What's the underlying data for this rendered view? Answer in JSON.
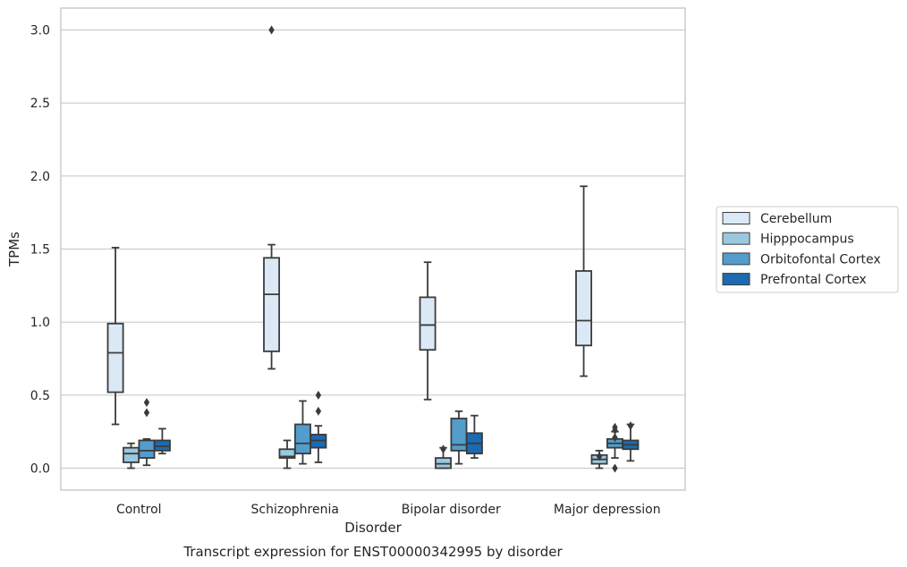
{
  "chart_data": {
    "type": "box",
    "caption": "Transcript expression for ENST00000342995 by disorder",
    "xlabel": "Disorder",
    "ylabel": "TPMs",
    "ylim": [
      -0.15,
      3.15
    ],
    "yticks": [
      0.0,
      0.5,
      1.0,
      1.5,
      2.0,
      2.5,
      3.0
    ],
    "ytick_labels": [
      "0.0",
      "0.5",
      "1.0",
      "1.5",
      "2.0",
      "2.5",
      "3.0"
    ],
    "grid": "horizontal",
    "legend_position": "right",
    "categories": [
      "Control",
      "Schizophrenia",
      "Bipolar disorder",
      "Major depression"
    ],
    "series": [
      {
        "name": "Cerebellum",
        "color": "#dbe9f6",
        "boxes": [
          {
            "whisker_low": 0.3,
            "q1": 0.52,
            "median": 0.79,
            "q3": 0.99,
            "whisker_high": 1.51,
            "outliers": []
          },
          {
            "whisker_low": 0.68,
            "q1": 0.8,
            "median": 1.19,
            "q3": 1.44,
            "whisker_high": 1.53,
            "outliers": [
              3.0
            ]
          },
          {
            "whisker_low": 0.47,
            "q1": 0.81,
            "median": 0.98,
            "q3": 1.17,
            "whisker_high": 1.41,
            "outliers": []
          },
          {
            "whisker_low": 0.63,
            "q1": 0.84,
            "median": 1.01,
            "q3": 1.35,
            "whisker_high": 1.93,
            "outliers": []
          }
        ]
      },
      {
        "name": "Hipppocampus",
        "color": "#9ac8e0",
        "boxes": [
          {
            "whisker_low": 0.0,
            "q1": 0.04,
            "median": 0.1,
            "q3": 0.14,
            "whisker_high": 0.17,
            "outliers": []
          },
          {
            "whisker_low": 0.0,
            "q1": 0.07,
            "median": 0.08,
            "q3": 0.13,
            "whisker_high": 0.19,
            "outliers": []
          },
          {
            "whisker_low": 0.0,
            "q1": 0.0,
            "median": 0.03,
            "q3": 0.07,
            "whisker_high": 0.14,
            "outliers": [
              0.13
            ]
          },
          {
            "whisker_low": 0.0,
            "q1": 0.03,
            "median": 0.06,
            "q3": 0.09,
            "whisker_high": 0.12,
            "outliers": [
              0.08
            ]
          }
        ]
      },
      {
        "name": "Orbitofontal Cortex",
        "color": "#529dcc",
        "boxes": [
          {
            "whisker_low": 0.02,
            "q1": 0.07,
            "median": 0.12,
            "q3": 0.19,
            "whisker_high": 0.2,
            "outliers": [
              0.38,
              0.45
            ]
          },
          {
            "whisker_low": 0.03,
            "q1": 0.1,
            "median": 0.17,
            "q3": 0.3,
            "whisker_high": 0.46,
            "outliers": []
          },
          {
            "whisker_low": 0.03,
            "q1": 0.12,
            "median": 0.16,
            "q3": 0.34,
            "whisker_high": 0.39,
            "outliers": []
          },
          {
            "whisker_low": 0.07,
            "q1": 0.14,
            "median": 0.17,
            "q3": 0.2,
            "whisker_high": 0.25,
            "outliers": [
              0.0,
              0.21,
              0.26,
              0.28
            ]
          }
        ]
      },
      {
        "name": "Prefrontal Cortex",
        "color": "#1c6aaf",
        "boxes": [
          {
            "whisker_low": 0.1,
            "q1": 0.12,
            "median": 0.15,
            "q3": 0.19,
            "whisker_high": 0.27,
            "outliers": []
          },
          {
            "whisker_low": 0.04,
            "q1": 0.14,
            "median": 0.19,
            "q3": 0.23,
            "whisker_high": 0.29,
            "outliers": [
              0.39,
              0.5
            ]
          },
          {
            "whisker_low": 0.07,
            "q1": 0.1,
            "median": 0.17,
            "q3": 0.24,
            "whisker_high": 0.36,
            "outliers": []
          },
          {
            "whisker_low": 0.05,
            "q1": 0.13,
            "median": 0.16,
            "q3": 0.19,
            "whisker_high": 0.3,
            "outliers": [
              0.29
            ]
          }
        ]
      }
    ]
  }
}
